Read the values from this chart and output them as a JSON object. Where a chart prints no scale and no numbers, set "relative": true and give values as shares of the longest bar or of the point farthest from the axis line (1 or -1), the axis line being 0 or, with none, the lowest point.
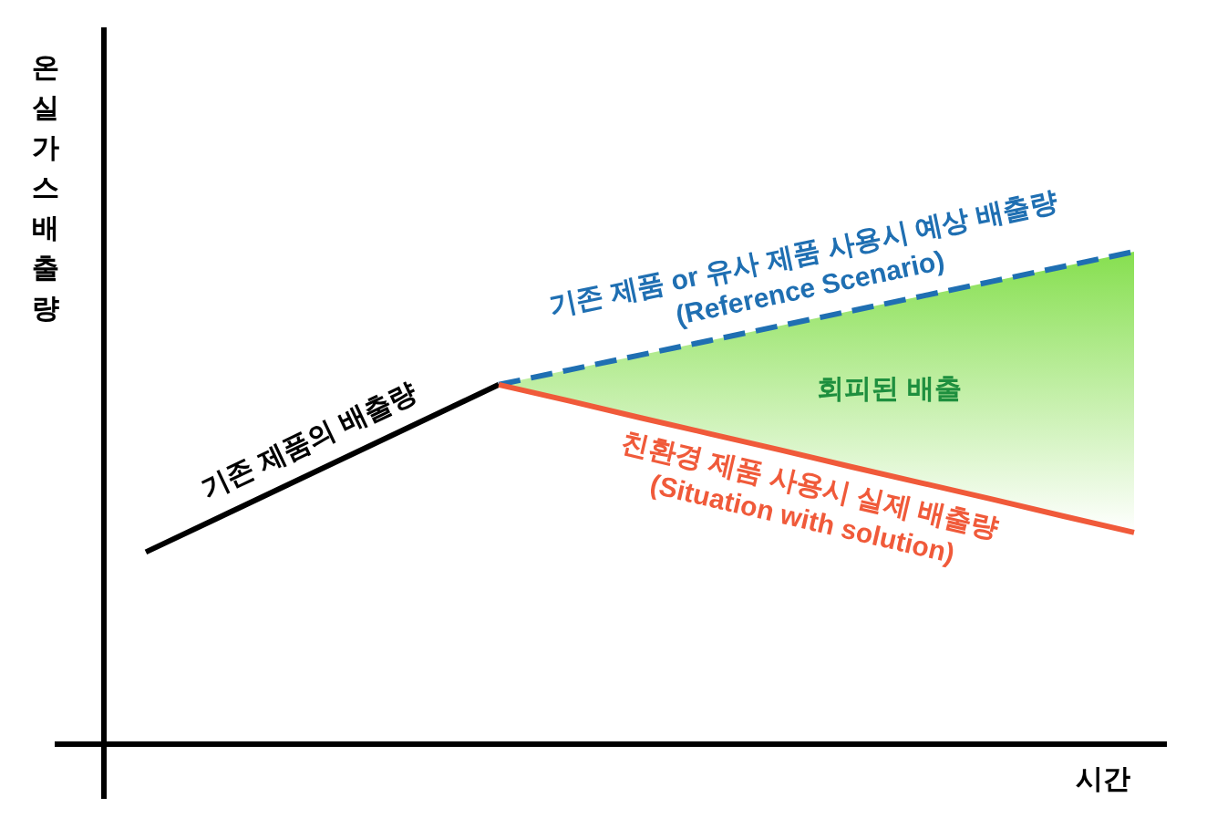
{
  "chart_data": {
    "type": "line",
    "relative": true,
    "marker": "none",
    "ylabel": "온실가스배출량",
    "xlabel": "시간",
    "categories": [
      null,
      null,
      null,
      null,
      null,
      null,
      null,
      null,
      null,
      null,
      null,
      null,
      null,
      null,
      null
    ],
    "series": [
      {
        "name": "기존 제품의 배출량",
        "color": "#000000",
        "line_style": "solid",
        "values": [
          0.39,
          0.458,
          0.526,
          0.594,
          0.662,
          0.73,
          null,
          null,
          null,
          null,
          null,
          null,
          null,
          null,
          null
        ]
      },
      {
        "name": "기존 제품 or 유사 제품 사용시 예상 배출량\n(Reference Scenario)",
        "color": "#1f6fb2",
        "line_style": "dashed",
        "values": [
          null,
          null,
          null,
          null,
          null,
          0.73,
          0.76,
          0.79,
          0.82,
          0.85,
          0.88,
          0.91,
          0.94,
          0.97,
          1
        ],
        "lower": [
          null,
          null,
          null,
          null,
          null,
          0.73,
          0.697,
          0.663,
          0.63,
          0.597,
          0.563,
          0.53,
          0.497,
          0.463,
          0.43
        ],
        "upper": [
          null,
          null,
          null,
          null,
          null,
          0.73,
          0.76,
          0.79,
          0.82,
          0.85,
          0.88,
          0.91,
          0.94,
          0.97,
          1
        ]
      },
      {
        "name": "친환경 제품 사용시 실제 배출량\n(Situation with solution)",
        "color": "#f05a3a",
        "line_style": "solid",
        "values": [
          null,
          null,
          null,
          null,
          null,
          0.73,
          0.697,
          0.663,
          0.63,
          0.597,
          0.563,
          0.53,
          0.497,
          0.463,
          0.43
        ]
      }
    ],
    "annotations": [
      "회피된 배출"
    ]
  }
}
